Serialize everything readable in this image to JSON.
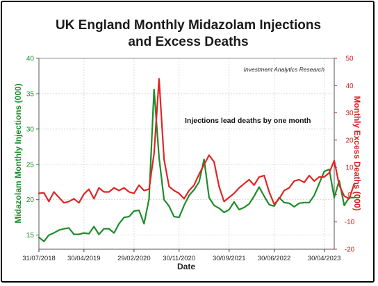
{
  "chart_data": {
    "type": "line",
    "title_line1": "UK England Monthly Midazolam Injections",
    "title_line2": "and Excess Deaths",
    "source": "Investment Analytics Research",
    "annotation": "Injections lead deaths by one month",
    "xlabel": "Date",
    "ylabel_left": "Midazolam Monthly Injections (000)",
    "ylabel_right": "Monthly Excess Deaths (000)",
    "x_ticks": [
      "31/07/2018",
      "30/04/2019",
      "29/02/2020",
      "30/11/2020",
      "30/09/2021",
      "30/06/2022",
      "30/04/2023"
    ],
    "x_range": [
      "2018-07",
      "2023-06"
    ],
    "ylim_left": [
      13,
      40
    ],
    "yticks_left": [
      15,
      20,
      25,
      30,
      35,
      40
    ],
    "ylim_right": [
      -20,
      50
    ],
    "yticks_right": [
      -20,
      -10,
      0,
      10,
      20,
      30,
      40,
      50
    ],
    "grid": true,
    "series": [
      {
        "name": "Midazolam Monthly Injections (000)",
        "axis": "left",
        "color": "#1e8c2a",
        "start": "2018-07",
        "values": [
          14.7,
          14.1,
          15.0,
          15.3,
          15.7,
          15.9,
          16.0,
          15.1,
          15.1,
          15.3,
          15.2,
          16.2,
          15.1,
          15.9,
          15.9,
          15.3,
          16.6,
          17.5,
          17.6,
          18.4,
          18.5,
          16.6,
          20.1,
          35.6,
          26.0,
          20.0,
          19.1,
          17.6,
          17.5,
          19.2,
          20.6,
          21.4,
          22.5,
          25.7,
          20.3,
          19.2,
          18.8,
          18.2,
          18.6,
          19.7,
          18.6,
          18.9,
          19.4,
          20.5,
          21.8,
          20.5,
          19.3,
          19.1,
          20.3,
          19.6,
          19.5,
          19.0,
          19.5,
          19.6,
          19.6,
          20.6,
          22.3,
          24.0,
          24.3,
          20.3,
          22.7,
          19.2,
          20.3,
          20.3
        ]
      },
      {
        "name": "Monthly Excess Deaths (000)",
        "axis": "right",
        "color": "#e02525",
        "start": "2018-07",
        "values": [
          0.5,
          0.7,
          -2.5,
          1.0,
          -1.0,
          -3.0,
          -2.5,
          -1.5,
          -3.0,
          0.2,
          2.0,
          -1.5,
          2.5,
          1.0,
          1.0,
          2.5,
          1.5,
          2.5,
          1.0,
          0.5,
          3.5,
          1.5,
          2.0,
          15.0,
          42.5,
          13.0,
          3.0,
          1.5,
          0.5,
          -1.5,
          1.5,
          3.5,
          7.5,
          11.0,
          14.5,
          12.0,
          3.0,
          -2.5,
          -1.0,
          0.5,
          2.5,
          4.0,
          5.5,
          3.5,
          6.5,
          7.0,
          1.0,
          -3.5,
          -1.5,
          1.5,
          2.5,
          5.0,
          5.5,
          4.5,
          7.0,
          5.0,
          6.5,
          6.5,
          8.0,
          12.5,
          3.5,
          -0.5,
          -1.5,
          4.0
        ]
      }
    ]
  }
}
